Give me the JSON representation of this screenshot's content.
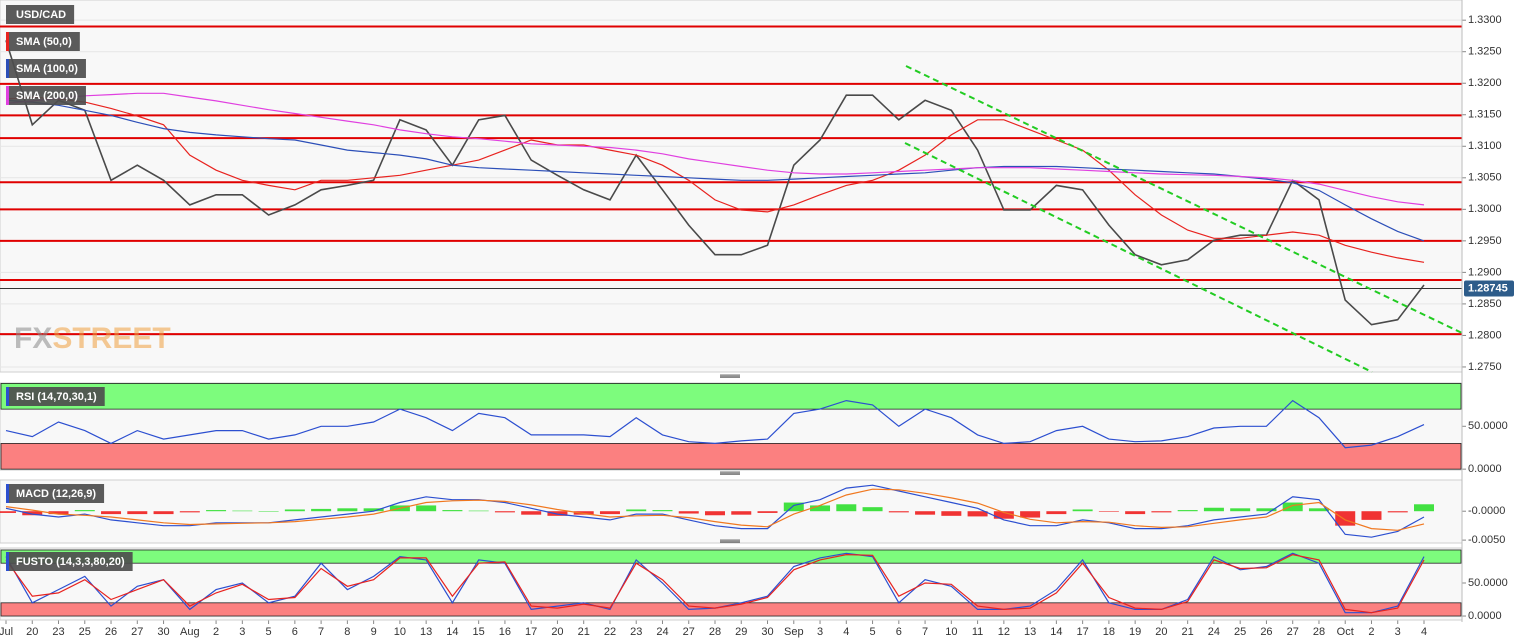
{
  "chart_data": [
    {
      "type": "line",
      "title": "USD/CAD",
      "categories": [
        "Jul",
        "20",
        "23",
        "25",
        "26",
        "27",
        "30",
        "Aug",
        "2",
        "3",
        "5",
        "6",
        "7",
        "8",
        "9",
        "10",
        "13",
        "14",
        "15",
        "16",
        "17",
        "20",
        "21",
        "22",
        "23",
        "24",
        "27",
        "28",
        "29",
        "30",
        "Sep",
        "3",
        "4",
        "5",
        "6",
        "7",
        "10",
        "11",
        "12",
        "13",
        "14",
        "17",
        "18",
        "19",
        "20",
        "21",
        "24",
        "25",
        "26",
        "27",
        "28",
        "Oct",
        "2",
        "3",
        "4"
      ],
      "series": [
        {
          "color": "#4a4a4a",
          "values": [
            1.3268,
            1.3134,
            1.3173,
            1.3157,
            1.3046,
            1.307,
            1.3046,
            1.3007,
            1.3023,
            1.3023,
            1.2991,
            1.3007,
            1.3031,
            1.3038,
            1.3046,
            1.3142,
            1.3126,
            1.307,
            1.3142,
            1.3149,
            1.3078,
            1.3054,
            1.3031,
            1.3015,
            1.3086,
            1.3031,
            1.2975,
            1.2928,
            1.2928,
            1.2943,
            1.307,
            1.311,
            1.3181,
            1.3181,
            1.3142,
            1.3173,
            1.3157,
            1.3094,
            1.2999,
            1.2999,
            1.3038,
            1.3031,
            1.2975,
            1.2928,
            1.2912,
            1.292,
            1.2951,
            1.2959,
            1.2959,
            1.3046,
            1.3015,
            1.2856,
            1.2817,
            1.2825,
            1.288
          ]
        },
        {
          "name": "SMA (50,0)",
          "color": "#e8231f",
          "values": [
            1.3175,
            1.3178,
            1.3175,
            1.317,
            1.316,
            1.3148,
            1.3134,
            1.3086,
            1.3062,
            1.3046,
            1.3038,
            1.3031,
            1.3046,
            1.3046,
            1.305,
            1.3054,
            1.3062,
            1.307,
            1.3078,
            1.3094,
            1.311,
            1.3102,
            1.3102,
            1.3094,
            1.3086,
            1.307,
            1.3046,
            1.3015,
            1.2999,
            1.2996,
            1.3007,
            1.3023,
            1.3038,
            1.3046,
            1.3062,
            1.3086,
            1.3118,
            1.3142,
            1.3142,
            1.3126,
            1.311,
            1.3094,
            1.3062,
            1.3023,
            1.2991,
            1.2967,
            1.2954,
            1.2954,
            1.2959,
            1.2964,
            1.2959,
            1.2943,
            1.2932,
            1.2923,
            1.2916
          ]
        },
        {
          "name": "SMA (100,0)",
          "color": "#2c4fb8",
          "values": [
            1.3173,
            1.317,
            1.3165,
            1.3157,
            1.3149,
            1.3138,
            1.3128,
            1.3122,
            1.3118,
            1.3115,
            1.3112,
            1.311,
            1.3102,
            1.3094,
            1.309,
            1.3086,
            1.308,
            1.307,
            1.3066,
            1.3064,
            1.3062,
            1.306,
            1.3058,
            1.3056,
            1.3054,
            1.3052,
            1.305,
            1.3048,
            1.3046,
            1.3046,
            1.3048,
            1.305,
            1.3052,
            1.3054,
            1.3056,
            1.3058,
            1.3062,
            1.3066,
            1.3068,
            1.3068,
            1.3068,
            1.3066,
            1.3064,
            1.3062,
            1.306,
            1.3058,
            1.3056,
            1.3052,
            1.3048,
            1.3042,
            1.303,
            1.3007,
            1.2985,
            1.2965,
            1.295
          ]
        },
        {
          "name": "SMA (200,0)",
          "color": "#e040e0",
          "values": [
            1.3168,
            1.3172,
            1.3176,
            1.318,
            1.3182,
            1.3184,
            1.3184,
            1.3178,
            1.3172,
            1.3165,
            1.3158,
            1.3152,
            1.3146,
            1.314,
            1.3134,
            1.3126,
            1.312,
            1.3115,
            1.3112,
            1.3108,
            1.3104,
            1.3102,
            1.31,
            1.3098,
            1.3094,
            1.3088,
            1.308,
            1.3074,
            1.3068,
            1.3062,
            1.3058,
            1.3056,
            1.3056,
            1.3058,
            1.306,
            1.3062,
            1.3064,
            1.3066,
            1.3066,
            1.3066,
            1.3064,
            1.3062,
            1.306,
            1.3058,
            1.3056,
            1.3055,
            1.3054,
            1.3052,
            1.305,
            1.3046,
            1.304,
            1.303,
            1.302,
            1.3012,
            1.3007
          ]
        }
      ],
      "levels": [
        1.329,
        1.3199,
        1.3149,
        1.3113,
        1.3043,
        1.3,
        1.295,
        1.2888,
        1.2802
      ],
      "level_color": "#e00000",
      "last_price": 1.28745,
      "last_price_color": "#2d5c8a",
      "watermark": [
        "FX",
        "STREET"
      ],
      "ylim": [
        1.2742,
        1.3332
      ],
      "yticks": [
        {
          "value": 1.33,
          "label": "1.3300"
        },
        {
          "value": 1.325,
          "label": "1.3250"
        },
        {
          "value": 1.32,
          "label": "1.3200"
        },
        {
          "value": 1.315,
          "label": "1.3150"
        },
        {
          "value": 1.31,
          "label": "1.3100"
        },
        {
          "value": 1.305,
          "label": "1.3050"
        },
        {
          "value": 1.3,
          "label": "1.3000"
        },
        {
          "value": 1.295,
          "label": "1.2950"
        },
        {
          "value": 1.29,
          "label": "1.2900"
        },
        {
          "value": 1.285,
          "label": "1.2850"
        },
        {
          "value": 1.28,
          "label": "1.2800"
        },
        {
          "value": 1.275,
          "label": "1.2750"
        }
      ],
      "grid": true
    },
    {
      "type": "line",
      "title": "RSI (14,70,30,1)",
      "series": [
        {
          "color": "#2c4fd0",
          "values": [
            45,
            38,
            55,
            45,
            30,
            45,
            35,
            40,
            45,
            45,
            35,
            40,
            50,
            50,
            55,
            70,
            60,
            45,
            65,
            60,
            40,
            40,
            40,
            38,
            60,
            40,
            32,
            30,
            33,
            35,
            65,
            70,
            80,
            75,
            50,
            70,
            60,
            40,
            30,
            32,
            45,
            50,
            35,
            32,
            33,
            38,
            48,
            50,
            50,
            80,
            60,
            25,
            28,
            38,
            52
          ]
        }
      ],
      "zones": [
        {
          "from": 70,
          "to": 100,
          "color": "#7dfc7d"
        },
        {
          "from": 0,
          "to": 30,
          "color": "#fb8080"
        }
      ],
      "ylim": [
        -1,
        100.5
      ],
      "yticks": [
        {
          "value": 50,
          "label": "50.0000"
        },
        {
          "value": 0,
          "label": "0.0000"
        }
      ]
    },
    {
      "type": "line",
      "title": "MACD (12,26,9)",
      "histogram": {
        "colors": [
          "#22dd22",
          "#ee1111"
        ],
        "values": [
          -0.0003,
          -0.0007,
          -0.0005,
          0.0002,
          -0.0005,
          -0.0005,
          -0.0005,
          -0.0002,
          0.0002,
          0.0001,
          0,
          0.0003,
          0.0004,
          0.0005,
          0.0005,
          0.001,
          0.001,
          0.0002,
          0.0001,
          -0.0002,
          -0.0006,
          -0.0008,
          -0.0006,
          -0.0005,
          0.0003,
          0.0002,
          -0.0004,
          -0.0007,
          -0.0006,
          -0.0003,
          0.0015,
          0.001,
          0.0012,
          0.0007,
          -0.0002,
          -0.0006,
          -0.0008,
          -0.0009,
          -0.0013,
          -0.0011,
          -0.0005,
          0.0003,
          -0.0001,
          -0.0005,
          -0.0002,
          0.0002,
          0.0006,
          0.0005,
          0.0005,
          0.0015,
          0.0005,
          -0.0025,
          -0.0015,
          -0.0002,
          0.0012
        ]
      },
      "series": [
        {
          "color": "#2c4fd0",
          "values": [
            0.0005,
            -0.0005,
            -0.001,
            -0.0005,
            -0.0015,
            -0.002,
            -0.0025,
            -0.0025,
            -0.002,
            -0.002,
            -0.002,
            -0.0015,
            -0.001,
            -0.0005,
            0,
            0.0015,
            0.0025,
            0.002,
            0.002,
            0.0015,
            0.0005,
            -0.0005,
            -0.001,
            -0.0015,
            -0.0005,
            -0.0005,
            -0.0015,
            -0.0025,
            -0.003,
            -0.003,
            0.001,
            0.002,
            0.004,
            0.0045,
            0.0035,
            0.0025,
            0.0015,
            0.0005,
            -0.0015,
            -0.0025,
            -0.0025,
            -0.0015,
            -0.002,
            -0.003,
            -0.003,
            -0.0025,
            -0.0015,
            -0.001,
            -0.0005,
            0.0025,
            0.002,
            -0.004,
            -0.0045,
            -0.0035,
            -0.001
          ]
        },
        {
          "color": "#f07820",
          "values": [
            0.0008,
            0.0002,
            -0.0005,
            -0.0007,
            -0.001,
            -0.0015,
            -0.002,
            -0.0023,
            -0.0022,
            -0.0021,
            -0.002,
            -0.0018,
            -0.0014,
            -0.001,
            -0.0005,
            0.0005,
            0.0015,
            0.0018,
            0.0019,
            0.0017,
            0.0011,
            0.0003,
            -0.0004,
            -0.001,
            -0.0008,
            -0.0007,
            -0.0011,
            -0.0018,
            -0.0024,
            -0.0027,
            -0.0005,
            0.001,
            0.0028,
            0.0038,
            0.0037,
            0.0031,
            0.0023,
            0.0014,
            -0.0002,
            -0.0014,
            -0.002,
            -0.0018,
            -0.0019,
            -0.0025,
            -0.0028,
            -0.0027,
            -0.0021,
            -0.0015,
            -0.001,
            0.001,
            0.0015,
            -0.0015,
            -0.003,
            -0.0033,
            -0.0022
          ]
        }
      ],
      "ylim": [
        -0.0055,
        0.0054
      ],
      "yticks": [
        {
          "value": 0,
          "label": "-0.0000"
        },
        {
          "value": -0.005,
          "label": "-0.0050"
        }
      ]
    },
    {
      "type": "line",
      "title": "FUSTO (14,3,3,80,20)",
      "series": [
        {
          "color": "#2c4fd0",
          "values": [
            90,
            20,
            40,
            60,
            15,
            45,
            55,
            10,
            40,
            50,
            20,
            30,
            80,
            40,
            60,
            90,
            85,
            20,
            85,
            80,
            10,
            15,
            20,
            10,
            85,
            50,
            10,
            12,
            20,
            30,
            75,
            88,
            95,
            90,
            20,
            55,
            45,
            10,
            10,
            15,
            40,
            85,
            20,
            10,
            10,
            25,
            90,
            70,
            75,
            95,
            80,
            5,
            5,
            15,
            90
          ]
        },
        {
          "color": "#e8231f",
          "values": [
            85,
            30,
            35,
            55,
            25,
            40,
            55,
            15,
            35,
            48,
            25,
            28,
            72,
            45,
            55,
            88,
            88,
            30,
            80,
            82,
            15,
            12,
            18,
            12,
            80,
            55,
            15,
            12,
            18,
            28,
            70,
            85,
            93,
            92,
            30,
            50,
            48,
            15,
            10,
            12,
            35,
            80,
            28,
            12,
            10,
            22,
            85,
            72,
            73,
            93,
            85,
            10,
            5,
            12,
            85
          ]
        }
      ],
      "zones": [
        {
          "from": 80,
          "to": 100,
          "color": "#7dfc7d"
        },
        {
          "from": 0,
          "to": 20,
          "color": "#fb8080"
        }
      ],
      "ylim": [
        -6,
        103
      ],
      "yticks": [
        {
          "value": 50,
          "label": "50.0000"
        },
        {
          "value": 0,
          "label": "0.0000"
        }
      ]
    }
  ]
}
